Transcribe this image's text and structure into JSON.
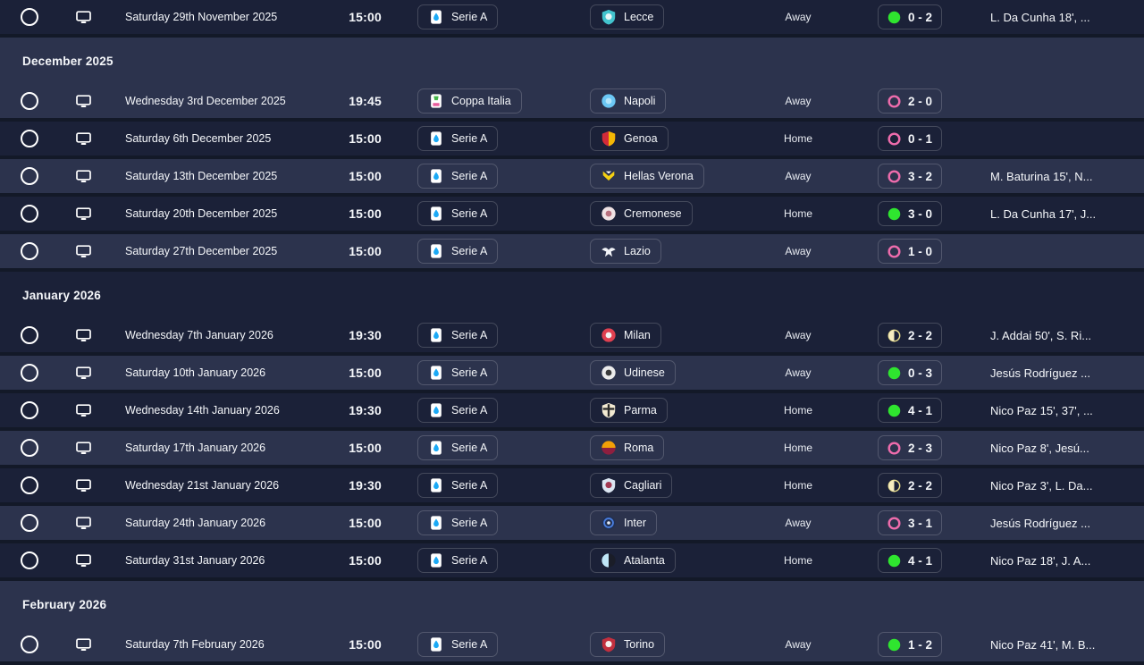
{
  "theme": {
    "background": "#131928",
    "row_dark": "#1b2138",
    "row_light": "#2c334d",
    "win_color": "#2fe52f",
    "loss_color": "#ee6cac",
    "draw_fill": "#f5ecc0",
    "draw_border": "#e8dc8a",
    "text_color": "#f5f7fa"
  },
  "sections": [
    {
      "header": null,
      "rows": [
        {
          "date": "Saturday 29th November 2025",
          "time": "15:00",
          "competition": {
            "name": "Serie A",
            "icon": "serie-a"
          },
          "opponent": {
            "name": "Lecce",
            "badge": "shield",
            "colors": [
              "#43c4ce",
              "#e8f6f7"
            ]
          },
          "venue": "Away",
          "result": {
            "outcome": "win",
            "score": "0 - 2"
          },
          "scorers": "L. Da Cunha 18', ..."
        }
      ]
    },
    {
      "header": "December 2025",
      "rows": [
        {
          "date": "Wednesday 3rd December 2025",
          "time": "19:45",
          "competition": {
            "name": "Coppa Italia",
            "icon": "coppa-italia"
          },
          "opponent": {
            "name": "Napoli",
            "badge": "circle",
            "colors": [
              "#6cc8f5",
              "#b5e6fb"
            ]
          },
          "venue": "Away",
          "result": {
            "outcome": "loss",
            "score": "2 - 0"
          },
          "scorers": ""
        },
        {
          "date": "Saturday 6th December 2025",
          "time": "15:00",
          "competition": {
            "name": "Serie A",
            "icon": "serie-a"
          },
          "opponent": {
            "name": "Genoa",
            "badge": "shield-split",
            "colors": [
              "#d22b39",
              "#f2b705"
            ]
          },
          "venue": "Home",
          "result": {
            "outcome": "loss",
            "score": "0 - 1"
          },
          "scorers": ""
        },
        {
          "date": "Saturday 13th December 2025",
          "time": "15:00",
          "competition": {
            "name": "Serie A",
            "icon": "serie-a"
          },
          "opponent": {
            "name": "Hellas Verona",
            "badge": "chevron",
            "colors": [
              "#f5d012",
              "#ffffff"
            ]
          },
          "venue": "Away",
          "result": {
            "outcome": "loss",
            "score": "3 - 2"
          },
          "scorers": "M. Baturina 15', N..."
        },
        {
          "date": "Saturday 20th December 2025",
          "time": "15:00",
          "competition": {
            "name": "Serie A",
            "icon": "serie-a"
          },
          "opponent": {
            "name": "Cremonese",
            "badge": "circle",
            "colors": [
              "#efe2e4",
              "#b8707e"
            ]
          },
          "venue": "Home",
          "result": {
            "outcome": "win",
            "score": "3 - 0"
          },
          "scorers": "L. Da Cunha 17', J..."
        },
        {
          "date": "Saturday 27th December 2025",
          "time": "15:00",
          "competition": {
            "name": "Serie A",
            "icon": "serie-a"
          },
          "opponent": {
            "name": "Lazio",
            "badge": "eagle",
            "colors": [
              "#f2f4f8"
            ]
          },
          "venue": "Away",
          "result": {
            "outcome": "loss",
            "score": "1 - 0"
          },
          "scorers": ""
        }
      ]
    },
    {
      "header": "January 2026",
      "rows": [
        {
          "date": "Wednesday 7th January 2026",
          "time": "19:30",
          "competition": {
            "name": "Serie A",
            "icon": "serie-a"
          },
          "opponent": {
            "name": "Milan",
            "badge": "circle",
            "colors": [
              "#e04050",
              "#f2f2f2"
            ]
          },
          "venue": "Away",
          "result": {
            "outcome": "draw",
            "score": "2 - 2"
          },
          "scorers": "J. Addai 50', S. Ri..."
        },
        {
          "date": "Saturday 10th January 2026",
          "time": "15:00",
          "competition": {
            "name": "Serie A",
            "icon": "serie-a"
          },
          "opponent": {
            "name": "Udinese",
            "badge": "circle",
            "colors": [
              "#ececec",
              "#3a3a3a"
            ]
          },
          "venue": "Away",
          "result": {
            "outcome": "win",
            "score": "0 - 3"
          },
          "scorers": "Jesús Rodríguez ..."
        },
        {
          "date": "Wednesday 14th January 2026",
          "time": "19:30",
          "competition": {
            "name": "Serie A",
            "icon": "serie-a"
          },
          "opponent": {
            "name": "Parma",
            "badge": "cross-shield",
            "colors": [
              "#f2ead2",
              "#2b2b2b"
            ]
          },
          "venue": "Home",
          "result": {
            "outcome": "win",
            "score": "4 - 1"
          },
          "scorers": "Nico Paz 15', 37', ..."
        },
        {
          "date": "Saturday 17th January 2026",
          "time": "15:00",
          "competition": {
            "name": "Serie A",
            "icon": "serie-a"
          },
          "opponent": {
            "name": "Roma",
            "badge": "circle-half",
            "colors": [
              "#f2a007",
              "#8e1f3f"
            ]
          },
          "venue": "Home",
          "result": {
            "outcome": "loss",
            "score": "2 - 3"
          },
          "scorers": "Nico Paz 8', Jesú..."
        },
        {
          "date": "Wednesday 21st January 2026",
          "time": "19:30",
          "competition": {
            "name": "Serie A",
            "icon": "serie-a"
          },
          "opponent": {
            "name": "Cagliari",
            "badge": "shield",
            "colors": [
              "#dce6f2",
              "#a23a52"
            ]
          },
          "venue": "Home",
          "result": {
            "outcome": "draw",
            "score": "2 - 2"
          },
          "scorers": "Nico Paz 3', L. Da..."
        },
        {
          "date": "Saturday 24th January 2026",
          "time": "15:00",
          "competition": {
            "name": "Serie A",
            "icon": "serie-a"
          },
          "opponent": {
            "name": "Inter",
            "badge": "ring",
            "colors": [
              "#223052",
              "#4a7fe0"
            ]
          },
          "venue": "Away",
          "result": {
            "outcome": "loss",
            "score": "3 - 1"
          },
          "scorers": "Jesús Rodríguez ..."
        },
        {
          "date": "Saturday 31st January 2026",
          "time": "15:00",
          "competition": {
            "name": "Serie A",
            "icon": "serie-a"
          },
          "opponent": {
            "name": "Atalanta",
            "badge": "circle-halfv",
            "colors": [
              "#bfe6f7",
              "#1a1d28"
            ]
          },
          "venue": "Home",
          "result": {
            "outcome": "win",
            "score": "4 - 1"
          },
          "scorers": "Nico Paz 18', J. A..."
        }
      ]
    },
    {
      "header": "February 2026",
      "rows": [
        {
          "date": "Saturday 7th February 2026",
          "time": "15:00",
          "competition": {
            "name": "Serie A",
            "icon": "serie-a"
          },
          "opponent": {
            "name": "Torino",
            "badge": "shield",
            "colors": [
              "#c22f3e",
              "#f5f0f0"
            ]
          },
          "venue": "Away",
          "result": {
            "outcome": "win",
            "score": "1 - 2"
          },
          "scorers": "Nico Paz 41', M. B..."
        }
      ]
    }
  ]
}
